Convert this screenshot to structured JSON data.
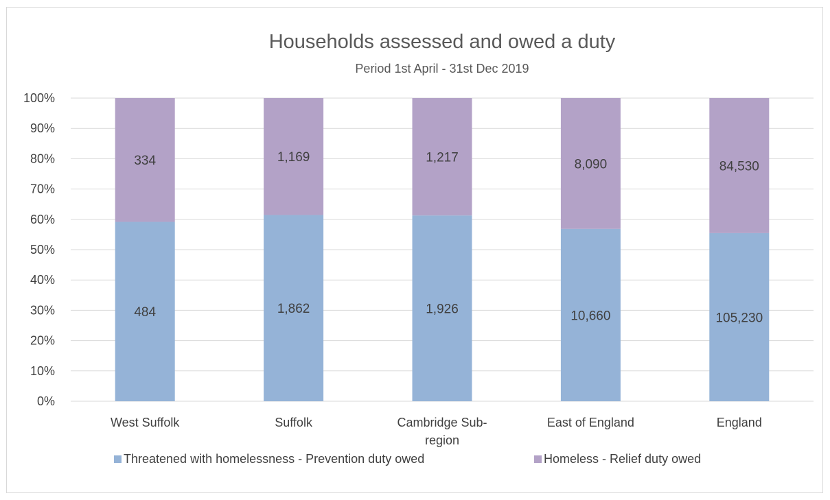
{
  "chart_data": {
    "type": "bar",
    "stacked": "percent",
    "title": "Households assessed and owed a duty",
    "subtitle": "Period 1st April - 31st Dec 2019",
    "categories": [
      "West Suffolk",
      "Suffolk",
      "Cambridge Sub-region",
      "East of England",
      "England"
    ],
    "category_label_lines": [
      [
        "West Suffolk"
      ],
      [
        "Suffolk"
      ],
      [
        "Cambridge Sub-",
        "region"
      ],
      [
        "East of England"
      ],
      [
        "England"
      ]
    ],
    "series": [
      {
        "name": "Threatened with homelessness - Prevention duty owed",
        "values": [
          484,
          1862,
          1926,
          10660,
          105230
        ],
        "labels": [
          "484",
          "1,862",
          "1,926",
          "10,660",
          "105,230"
        ],
        "color": "#95b3d7"
      },
      {
        "name": "Homeless - Relief duty owed",
        "values": [
          334,
          1169,
          1217,
          8090,
          84530
        ],
        "labels": [
          "334",
          "1,169",
          "1,217",
          "8,090",
          "84,530"
        ],
        "color": "#b3a2c7"
      }
    ],
    "y_ticks": [
      "0%",
      "10%",
      "20%",
      "30%",
      "40%",
      "50%",
      "60%",
      "70%",
      "80%",
      "90%",
      "100%"
    ],
    "ylim": [
      0,
      100
    ],
    "grid": true,
    "legend_position": "bottom",
    "colors": {
      "grid": "#d9d9d9",
      "title": "#595959",
      "text": "#404040"
    }
  }
}
